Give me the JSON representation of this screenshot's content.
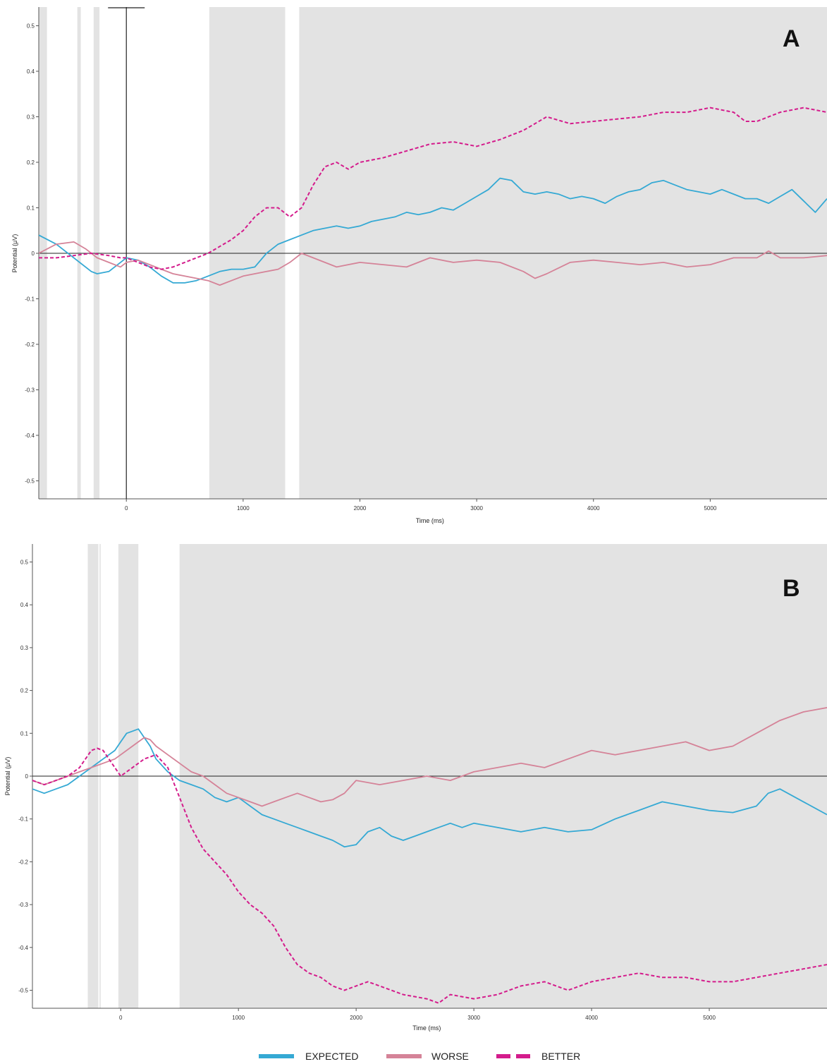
{
  "figure": {
    "legend": [
      {
        "key": "expected",
        "label": "EXPECTED",
        "color": "#35a9d4",
        "style": "solid"
      },
      {
        "key": "worse",
        "label": "WORSE",
        "color": "#d58398",
        "style": "solid"
      },
      {
        "key": "better",
        "label": "BETTER",
        "color": "#d41c8c",
        "style": "dashed"
      }
    ]
  },
  "chart_data": [
    {
      "type": "line",
      "panel_label": "A",
      "xlabel": "Time (ms)",
      "ylabel": "Potential (μV)",
      "xlim": [
        -750,
        6000
      ],
      "ylim": [
        -0.55,
        0.55
      ],
      "x_ticks": [
        0,
        1000,
        2000,
        3000,
        4000,
        5000
      ],
      "y_ticks": [
        0.5,
        0.4,
        0.3,
        0.2,
        0.1,
        0,
        -0.1,
        -0.2,
        -0.3,
        -0.4,
        -0.5
      ],
      "grid": false,
      "shaded_regions": [
        [
          -750,
          -680
        ],
        [
          -420,
          -390
        ],
        [
          -280,
          -230
        ],
        [
          710,
          1360
        ],
        [
          1480,
          6000
        ]
      ],
      "series": [
        {
          "key": "expected",
          "color": "#35a9d4",
          "dashed": false,
          "x": [
            -750,
            -600,
            -450,
            -300,
            -250,
            -150,
            -50,
            0,
            100,
            200,
            300,
            400,
            500,
            600,
            700,
            800,
            900,
            1000,
            1100,
            1200,
            1300,
            1400,
            1500,
            1600,
            1700,
            1800,
            1900,
            2000,
            2100,
            2200,
            2300,
            2400,
            2500,
            2600,
            2700,
            2800,
            2900,
            3000,
            3100,
            3200,
            3300,
            3400,
            3500,
            3600,
            3700,
            3800,
            3900,
            4000,
            4100,
            4200,
            4300,
            4400,
            4500,
            4600,
            4700,
            4800,
            4900,
            5000,
            5100,
            5200,
            5300,
            5400,
            5500,
            5600,
            5700,
            5800,
            5900,
            6000
          ],
          "values": [
            0.04,
            0.02,
            -0.01,
            -0.04,
            -0.045,
            -0.04,
            -0.02,
            -0.01,
            -0.015,
            -0.03,
            -0.05,
            -0.065,
            -0.065,
            -0.06,
            -0.05,
            -0.04,
            -0.035,
            -0.035,
            -0.03,
            0.0,
            0.02,
            0.03,
            0.04,
            0.05,
            0.055,
            0.06,
            0.055,
            0.06,
            0.07,
            0.075,
            0.08,
            0.09,
            0.085,
            0.09,
            0.1,
            0.095,
            0.11,
            0.125,
            0.14,
            0.165,
            0.16,
            0.135,
            0.13,
            0.135,
            0.13,
            0.12,
            0.125,
            0.12,
            0.11,
            0.125,
            0.135,
            0.14,
            0.155,
            0.16,
            0.15,
            0.14,
            0.135,
            0.13,
            0.14,
            0.13,
            0.12,
            0.12,
            0.11,
            0.125,
            0.14,
            0.115,
            0.09,
            0.12
          ]
        },
        {
          "key": "worse",
          "color": "#d58398",
          "dashed": false,
          "x": [
            -750,
            -600,
            -450,
            -350,
            -250,
            -150,
            -50,
            0,
            100,
            200,
            300,
            400,
            500,
            600,
            700,
            800,
            900,
            1000,
            1100,
            1200,
            1300,
            1400,
            1500,
            1600,
            1700,
            1800,
            1900,
            2000,
            2200,
            2400,
            2600,
            2800,
            3000,
            3200,
            3400,
            3500,
            3600,
            3800,
            4000,
            4200,
            4400,
            4600,
            4800,
            5000,
            5200,
            5400,
            5500,
            5600,
            5800,
            6000
          ],
          "values": [
            0.0,
            0.02,
            0.025,
            0.01,
            -0.01,
            -0.02,
            -0.03,
            -0.02,
            -0.015,
            -0.025,
            -0.035,
            -0.045,
            -0.05,
            -0.055,
            -0.06,
            -0.07,
            -0.06,
            -0.05,
            -0.045,
            -0.04,
            -0.035,
            -0.02,
            0.0,
            -0.01,
            -0.02,
            -0.03,
            -0.025,
            -0.02,
            -0.025,
            -0.03,
            -0.01,
            -0.02,
            -0.015,
            -0.02,
            -0.04,
            -0.055,
            -0.045,
            -0.02,
            -0.015,
            -0.02,
            -0.025,
            -0.02,
            -0.03,
            -0.025,
            -0.01,
            -0.01,
            0.005,
            -0.01,
            -0.01,
            -0.005
          ]
        },
        {
          "key": "better",
          "color": "#d41c8c",
          "dashed": true,
          "x": [
            -750,
            -600,
            -450,
            -300,
            -150,
            -50,
            0,
            100,
            200,
            300,
            400,
            500,
            600,
            700,
            800,
            900,
            1000,
            1100,
            1200,
            1300,
            1400,
            1500,
            1600,
            1700,
            1800,
            1900,
            2000,
            2200,
            2400,
            2600,
            2800,
            3000,
            3200,
            3400,
            3600,
            3800,
            4000,
            4200,
            4400,
            4600,
            4800,
            5000,
            5200,
            5300,
            5400,
            5600,
            5800,
            6000
          ],
          "values": [
            -0.01,
            -0.01,
            -0.005,
            0.0,
            -0.005,
            -0.01,
            -0.01,
            -0.02,
            -0.03,
            -0.035,
            -0.03,
            -0.02,
            -0.01,
            0.0,
            0.015,
            0.03,
            0.05,
            0.08,
            0.1,
            0.1,
            0.08,
            0.1,
            0.15,
            0.19,
            0.2,
            0.185,
            0.2,
            0.21,
            0.225,
            0.24,
            0.245,
            0.235,
            0.25,
            0.27,
            0.3,
            0.285,
            0.29,
            0.295,
            0.3,
            0.31,
            0.31,
            0.32,
            0.31,
            0.29,
            0.29,
            0.31,
            0.32,
            0.31
          ]
        }
      ]
    },
    {
      "type": "line",
      "panel_label": "B",
      "xlabel": "Time (ms)",
      "ylabel": "Potential (μV)",
      "xlim": [
        -750,
        6000
      ],
      "ylim": [
        -0.54,
        0.54
      ],
      "x_ticks": [
        0,
        1000,
        2000,
        3000,
        4000,
        5000
      ],
      "y_ticks": [
        0.5,
        0.4,
        0.3,
        0.2,
        0.1,
        0,
        -0.1,
        -0.2,
        -0.3,
        -0.4,
        -0.5
      ],
      "grid": false,
      "shaded_regions": [
        [
          -280,
          -190
        ],
        [
          -180,
          -170
        ],
        [
          -20,
          150
        ],
        [
          500,
          6000
        ]
      ],
      "series": [
        {
          "key": "expected",
          "color": "#35a9d4",
          "dashed": false,
          "x": [
            -750,
            -650,
            -550,
            -450,
            -350,
            -250,
            -150,
            -50,
            0,
            50,
            100,
            150,
            200,
            250,
            300,
            400,
            500,
            600,
            700,
            800,
            900,
            1000,
            1100,
            1200,
            1300,
            1400,
            1500,
            1600,
            1700,
            1800,
            1900,
            2000,
            2100,
            2200,
            2300,
            2400,
            2500,
            2600,
            2700,
            2800,
            2900,
            3000,
            3200,
            3400,
            3600,
            3800,
            4000,
            4200,
            4400,
            4600,
            4800,
            5000,
            5200,
            5400,
            5500,
            5600,
            5800,
            6000
          ],
          "values": [
            -0.03,
            -0.04,
            -0.03,
            -0.02,
            0.0,
            0.02,
            0.04,
            0.06,
            0.08,
            0.1,
            0.105,
            0.11,
            0.09,
            0.07,
            0.04,
            0.01,
            -0.01,
            -0.02,
            -0.03,
            -0.05,
            -0.06,
            -0.05,
            -0.07,
            -0.09,
            -0.1,
            -0.11,
            -0.12,
            -0.13,
            -0.14,
            -0.15,
            -0.165,
            -0.16,
            -0.13,
            -0.12,
            -0.14,
            -0.15,
            -0.14,
            -0.13,
            -0.12,
            -0.11,
            -0.12,
            -0.11,
            -0.12,
            -0.13,
            -0.12,
            -0.13,
            -0.125,
            -0.1,
            -0.08,
            -0.06,
            -0.07,
            -0.08,
            -0.085,
            -0.07,
            -0.04,
            -0.03,
            -0.06,
            -0.09
          ]
        },
        {
          "key": "worse",
          "color": "#d58398",
          "dashed": false,
          "x": [
            -750,
            -650,
            -550,
            -450,
            -350,
            -250,
            -150,
            -50,
            0,
            100,
            200,
            250,
            300,
            400,
            500,
            600,
            700,
            800,
            900,
            1000,
            1100,
            1200,
            1300,
            1400,
            1500,
            1600,
            1700,
            1800,
            1900,
            2000,
            2200,
            2400,
            2600,
            2800,
            3000,
            3200,
            3400,
            3600,
            3800,
            4000,
            4200,
            4400,
            4600,
            4800,
            5000,
            5200,
            5400,
            5600,
            5800,
            6000
          ],
          "values": [
            -0.01,
            -0.02,
            -0.01,
            0.0,
            0.01,
            0.02,
            0.03,
            0.04,
            0.05,
            0.07,
            0.09,
            0.085,
            0.07,
            0.05,
            0.03,
            0.01,
            0.0,
            -0.02,
            -0.04,
            -0.05,
            -0.06,
            -0.07,
            -0.06,
            -0.05,
            -0.04,
            -0.05,
            -0.06,
            -0.055,
            -0.04,
            -0.01,
            -0.02,
            -0.01,
            0.0,
            -0.01,
            0.01,
            0.02,
            0.03,
            0.02,
            0.04,
            0.06,
            0.05,
            0.06,
            0.07,
            0.08,
            0.06,
            0.07,
            0.1,
            0.13,
            0.15,
            0.16
          ]
        },
        {
          "key": "better",
          "color": "#d41c8c",
          "dashed": true,
          "x": [
            -750,
            -650,
            -550,
            -450,
            -350,
            -250,
            -200,
            -150,
            -100,
            -50,
            0,
            100,
            200,
            300,
            400,
            500,
            600,
            700,
            800,
            900,
            1000,
            1100,
            1200,
            1300,
            1400,
            1500,
            1600,
            1700,
            1800,
            1900,
            2000,
            2100,
            2200,
            2300,
            2400,
            2600,
            2700,
            2800,
            3000,
            3200,
            3400,
            3600,
            3800,
            4000,
            4200,
            4400,
            4600,
            4800,
            5000,
            5200,
            5400,
            5600,
            5800,
            6000
          ],
          "values": [
            -0.01,
            -0.02,
            -0.01,
            0.0,
            0.02,
            0.06,
            0.065,
            0.06,
            0.04,
            0.02,
            0.0,
            0.02,
            0.04,
            0.05,
            0.02,
            -0.05,
            -0.12,
            -0.17,
            -0.2,
            -0.23,
            -0.27,
            -0.3,
            -0.32,
            -0.35,
            -0.4,
            -0.44,
            -0.46,
            -0.47,
            -0.49,
            -0.5,
            -0.49,
            -0.48,
            -0.49,
            -0.5,
            -0.51,
            -0.52,
            -0.53,
            -0.51,
            -0.52,
            -0.51,
            -0.49,
            -0.48,
            -0.5,
            -0.48,
            -0.47,
            -0.46,
            -0.47,
            -0.47,
            -0.48,
            -0.48,
            -0.47,
            -0.46,
            -0.45,
            -0.44
          ]
        }
      ]
    }
  ]
}
